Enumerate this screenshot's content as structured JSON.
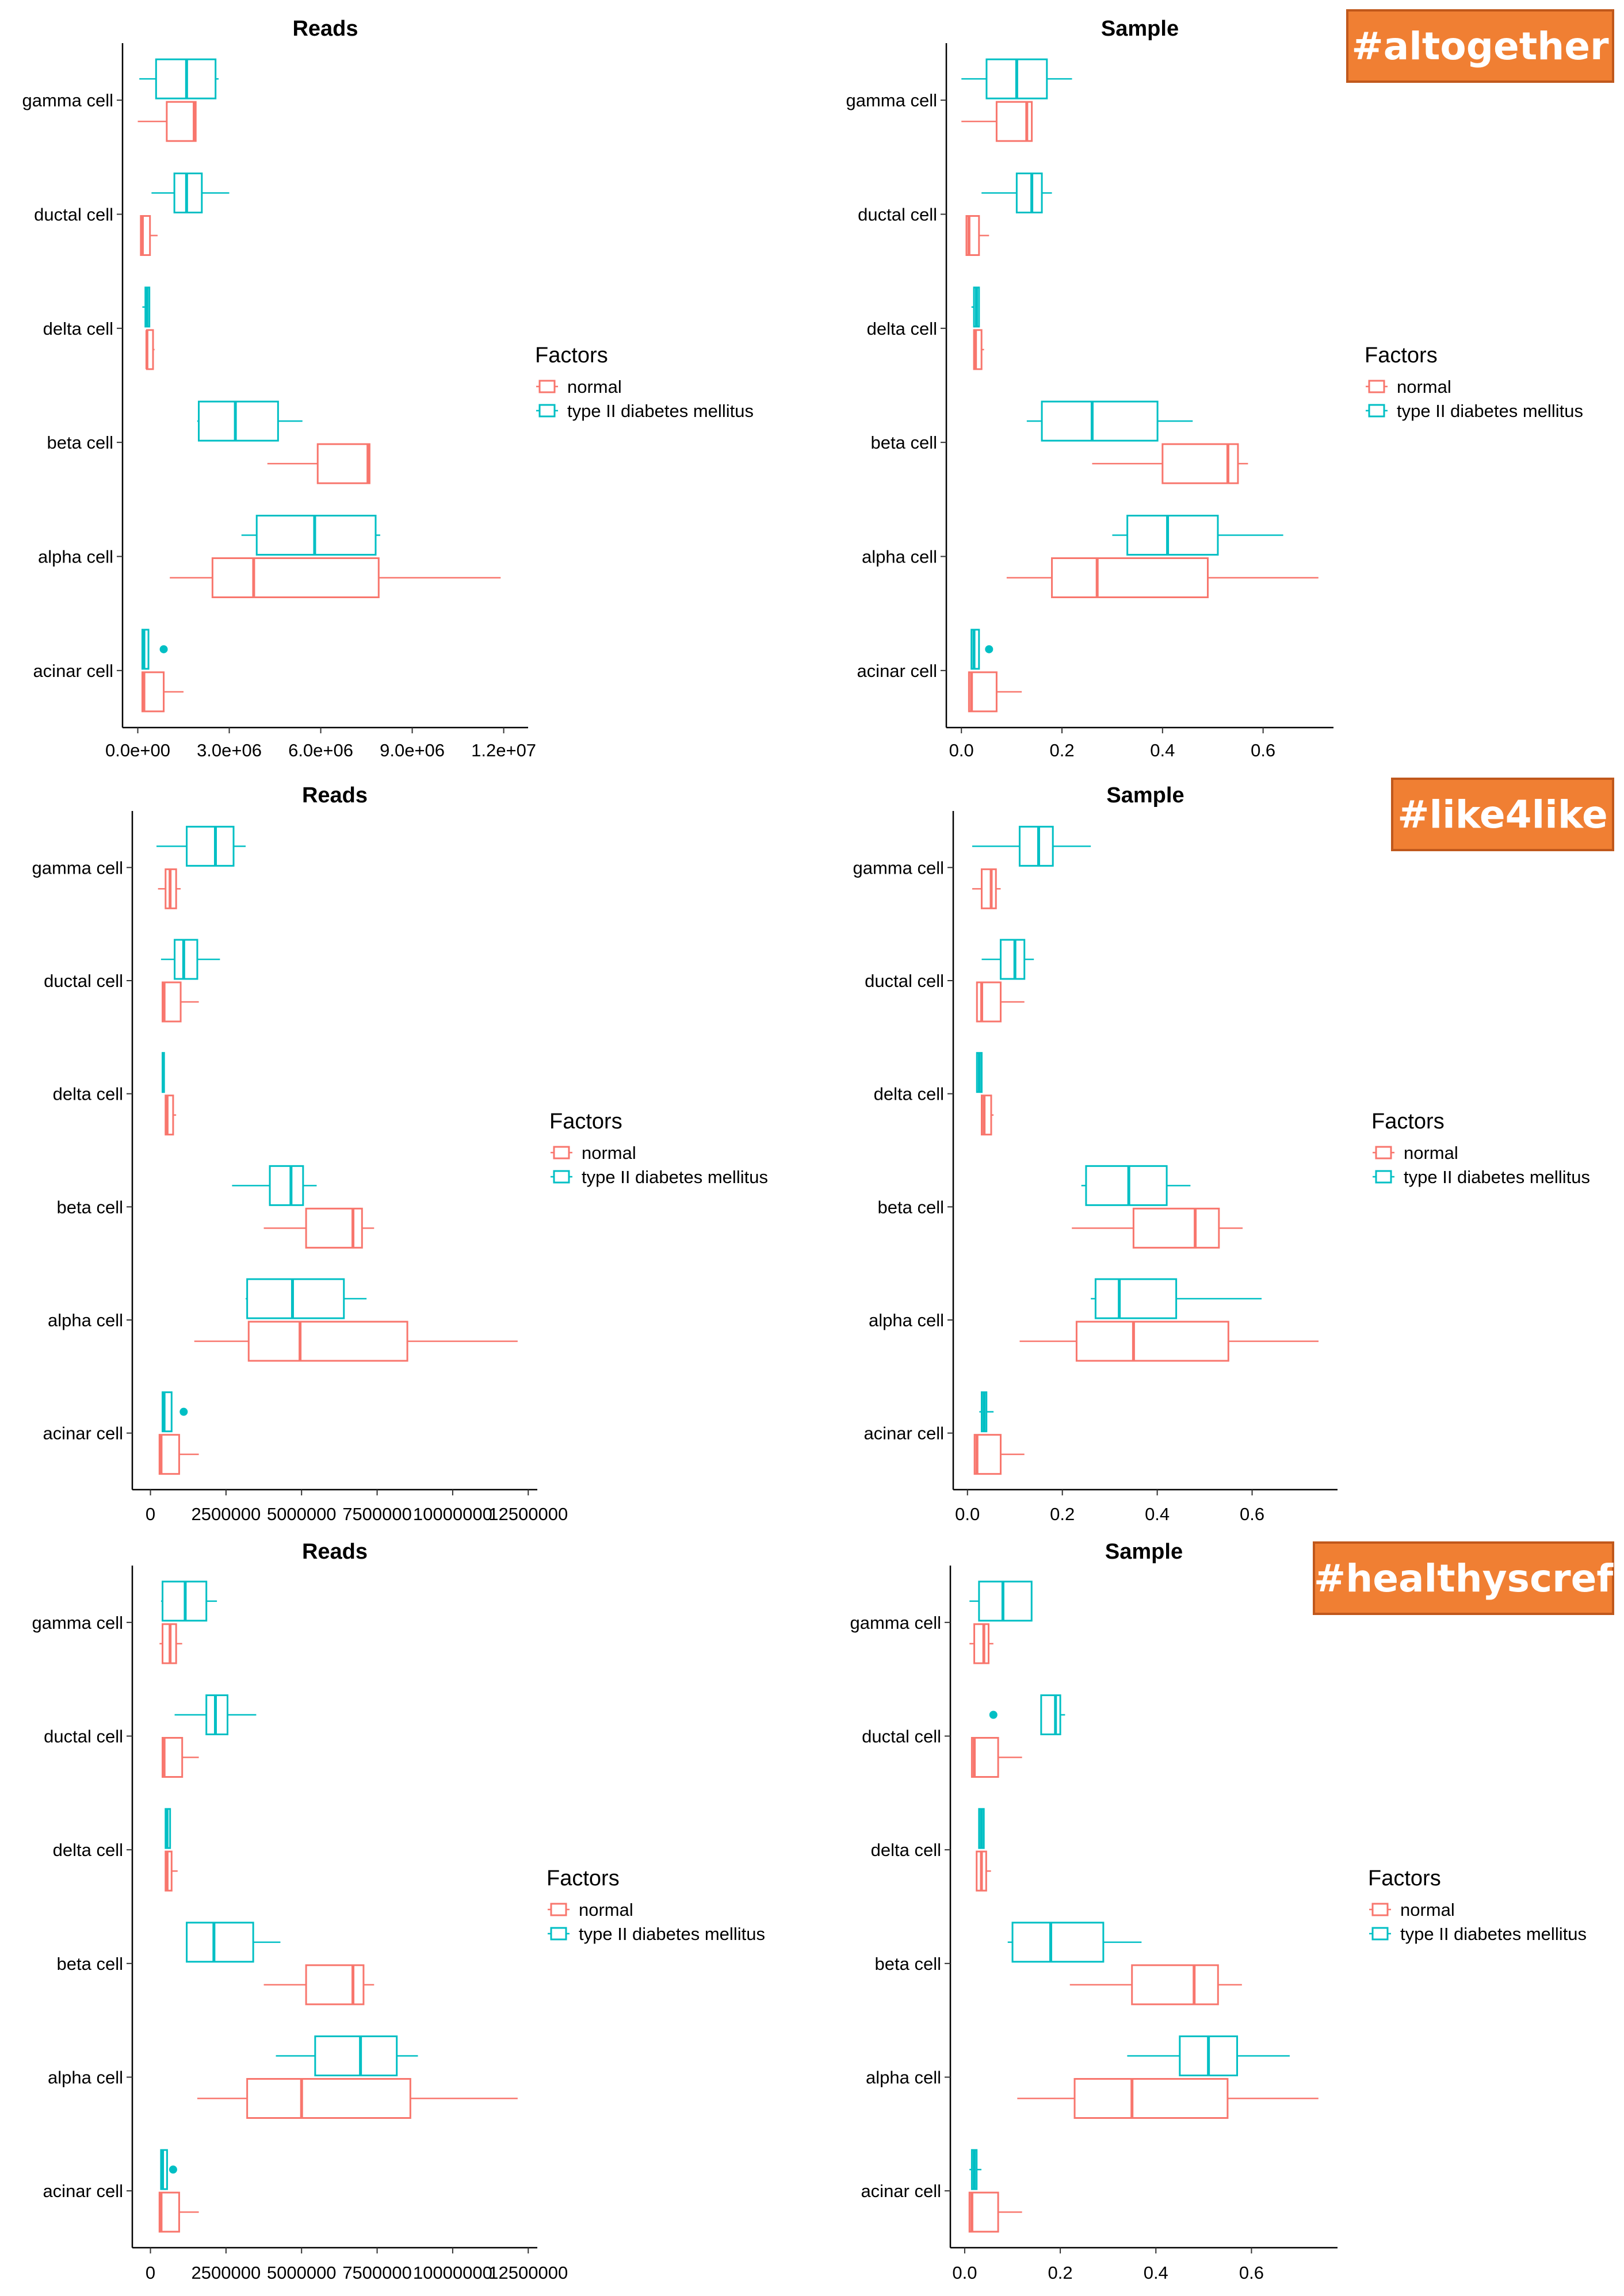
{
  "colors": {
    "normal": "#F8766D",
    "t2d": "#00BFC4",
    "axis": "#000000",
    "tag_bg": "#F07F33",
    "tag_border": "#C0581C"
  },
  "legend": {
    "title": "Factors",
    "entries": [
      "normal",
      "type II diabetes mellitus"
    ]
  },
  "categories": [
    "gamma cell",
    "ductal cell",
    "delta cell",
    "beta cell",
    "alpha cell",
    "acinar cell"
  ],
  "sections": [
    {
      "tag": "#altogether"
    },
    {
      "tag": "#like4like"
    },
    {
      "tag": "#healthyscref"
    }
  ],
  "chart_data": [
    {
      "type": "boxplot",
      "orientation": "horizontal",
      "title": "Reads",
      "section": 0,
      "xlim": [
        -500000,
        12800000
      ],
      "xticks": [
        0,
        3000000,
        6000000,
        9000000,
        12000000
      ],
      "xticklabels": [
        "0.0e+00",
        "3.0e+06",
        "6.0e+06",
        "9.0e+06",
        "1.2e+07"
      ],
      "series": [
        {
          "name": "normal",
          "boxes": {
            "gamma cell": {
              "min": 0,
              "q1": 950000,
              "median": 1850000,
              "q3": 1900000,
              "max": 1900000,
              "outliers": []
            },
            "ductal cell": {
              "min": 100000,
              "q1": 100000,
              "median": 150000,
              "q3": 400000,
              "max": 650000,
              "outliers": []
            },
            "delta cell": {
              "min": 300000,
              "q1": 300000,
              "median": 300000,
              "q3": 500000,
              "max": 550000,
              "outliers": []
            },
            "beta cell": {
              "min": 4250000,
              "q1": 5900000,
              "median": 7550000,
              "q3": 7600000,
              "max": 7600000,
              "outliers": []
            },
            "alpha cell": {
              "min": 1050000,
              "q1": 2450000,
              "median": 3800000,
              "q3": 7900000,
              "max": 11900000,
              "outliers": []
            },
            "acinar cell": {
              "min": 150000,
              "q1": 150000,
              "median": 200000,
              "q3": 850000,
              "max": 1500000,
              "outliers": []
            }
          }
        },
        {
          "name": "type II diabetes mellitus",
          "boxes": {
            "gamma cell": {
              "min": 50000,
              "q1": 600000,
              "median": 1600000,
              "q3": 2550000,
              "max": 2650000,
              "outliers": []
            },
            "ductal cell": {
              "min": 450000,
              "q1": 1200000,
              "median": 1600000,
              "q3": 2100000,
              "max": 3000000,
              "outliers": []
            },
            "delta cell": {
              "min": 150000,
              "q1": 250000,
              "median": 300000,
              "q3": 380000,
              "max": 380000,
              "outliers": []
            },
            "beta cell": {
              "min": 1950000,
              "q1": 2000000,
              "median": 3200000,
              "q3": 4600000,
              "max": 5400000,
              "outliers": []
            },
            "alpha cell": {
              "min": 3400000,
              "q1": 3900000,
              "median": 5800000,
              "q3": 7800000,
              "max": 7950000,
              "outliers": []
            },
            "acinar cell": {
              "min": 150000,
              "q1": 150000,
              "median": 200000,
              "q3": 350000,
              "max": 350000,
              "outliers": [
                850000
              ]
            }
          }
        }
      ]
    },
    {
      "type": "boxplot",
      "orientation": "horizontal",
      "title": "Sample",
      "section": 0,
      "xlim": [
        -0.03,
        0.74
      ],
      "xticks": [
        0,
        0.2,
        0.4,
        0.6
      ],
      "xticklabels": [
        "0.0",
        "0.2",
        "0.4",
        "0.6"
      ],
      "series": [
        {
          "name": "normal",
          "boxes": {
            "gamma cell": {
              "min": 0.0,
              "q1": 0.07,
              "median": 0.13,
              "q3": 0.14,
              "max": 0.14,
              "outliers": []
            },
            "ductal cell": {
              "min": 0.01,
              "q1": 0.01,
              "median": 0.015,
              "q3": 0.035,
              "max": 0.055,
              "outliers": []
            },
            "delta cell": {
              "min": 0.025,
              "q1": 0.025,
              "median": 0.028,
              "q3": 0.04,
              "max": 0.045,
              "outliers": []
            },
            "beta cell": {
              "min": 0.26,
              "q1": 0.4,
              "median": 0.53,
              "q3": 0.55,
              "max": 0.57,
              "outliers": []
            },
            "alpha cell": {
              "min": 0.09,
              "q1": 0.18,
              "median": 0.27,
              "q3": 0.49,
              "max": 0.71,
              "outliers": []
            },
            "acinar cell": {
              "min": 0.015,
              "q1": 0.015,
              "median": 0.02,
              "q3": 0.07,
              "max": 0.12,
              "outliers": []
            }
          }
        },
        {
          "name": "type II diabetes mellitus",
          "boxes": {
            "gamma cell": {
              "min": 0.0,
              "q1": 0.05,
              "median": 0.11,
              "q3": 0.17,
              "max": 0.22,
              "outliers": []
            },
            "ductal cell": {
              "min": 0.04,
              "q1": 0.11,
              "median": 0.14,
              "q3": 0.16,
              "max": 0.18,
              "outliers": []
            },
            "delta cell": {
              "min": 0.02,
              "q1": 0.025,
              "median": 0.03,
              "q3": 0.035,
              "max": 0.035,
              "outliers": []
            },
            "beta cell": {
              "min": 0.13,
              "q1": 0.16,
              "median": 0.26,
              "q3": 0.39,
              "max": 0.46,
              "outliers": []
            },
            "alpha cell": {
              "min": 0.3,
              "q1": 0.33,
              "median": 0.41,
              "q3": 0.51,
              "max": 0.64,
              "outliers": []
            },
            "acinar cell": {
              "min": 0.02,
              "q1": 0.02,
              "median": 0.025,
              "q3": 0.035,
              "max": 0.035,
              "outliers": [
                0.055
              ]
            }
          }
        }
      ]
    },
    {
      "type": "boxplot",
      "orientation": "horizontal",
      "title": "Reads",
      "section": 1,
      "xlim": [
        -600000,
        12800000
      ],
      "xticks": [
        0,
        2500000,
        5000000,
        7500000,
        10000000,
        12500000
      ],
      "xticklabels": [
        "0",
        "2500000",
        "5000000",
        "7500000",
        "10000000",
        "12500000"
      ],
      "series": [
        {
          "name": "normal",
          "boxes": {
            "gamma cell": {
              "min": 250000,
              "q1": 500000,
              "median": 650000,
              "q3": 850000,
              "max": 1000000,
              "outliers": []
            },
            "ductal cell": {
              "min": 400000,
              "q1": 400000,
              "median": 450000,
              "q3": 1000000,
              "max": 1600000,
              "outliers": []
            },
            "delta cell": {
              "min": 500000,
              "q1": 500000,
              "median": 550000,
              "q3": 750000,
              "max": 850000,
              "outliers": []
            },
            "beta cell": {
              "min": 3750000,
              "q1": 5150000,
              "median": 6700000,
              "q3": 7000000,
              "max": 7400000,
              "outliers": []
            },
            "alpha cell": {
              "min": 1450000,
              "q1": 3250000,
              "median": 4950000,
              "q3": 8500000,
              "max": 12150000,
              "outliers": []
            },
            "acinar cell": {
              "min": 300000,
              "q1": 300000,
              "median": 350000,
              "q3": 950000,
              "max": 1600000,
              "outliers": []
            }
          }
        },
        {
          "name": "type II diabetes mellitus",
          "boxes": {
            "gamma cell": {
              "min": 200000,
              "q1": 1200000,
              "median": 2150000,
              "q3": 2750000,
              "max": 3150000,
              "outliers": []
            },
            "ductal cell": {
              "min": 350000,
              "q1": 800000,
              "median": 1100000,
              "q3": 1550000,
              "max": 2300000,
              "outliers": []
            },
            "delta cell": {
              "min": 400000,
              "q1": 400000,
              "median": 420000,
              "q3": 450000,
              "max": 450000,
              "outliers": []
            },
            "beta cell": {
              "min": 2700000,
              "q1": 3950000,
              "median": 4650000,
              "q3": 5050000,
              "max": 5500000,
              "outliers": []
            },
            "alpha cell": {
              "min": 3150000,
              "q1": 3200000,
              "median": 4700000,
              "q3": 6400000,
              "max": 7150000,
              "outliers": []
            },
            "acinar cell": {
              "min": 400000,
              "q1": 400000,
              "median": 450000,
              "q3": 700000,
              "max": 700000,
              "outliers": [
                1100000
              ]
            }
          }
        }
      ]
    },
    {
      "type": "boxplot",
      "orientation": "horizontal",
      "title": "Sample",
      "section": 1,
      "xlim": [
        -0.03,
        0.78
      ],
      "xticks": [
        0,
        0.2,
        0.4,
        0.6
      ],
      "xticklabels": [
        "0.0",
        "0.2",
        "0.4",
        "0.6"
      ],
      "series": [
        {
          "name": "normal",
          "boxes": {
            "gamma cell": {
              "min": 0.01,
              "q1": 0.03,
              "median": 0.05,
              "q3": 0.06,
              "max": 0.07,
              "outliers": []
            },
            "ductal cell": {
              "min": 0.02,
              "q1": 0.02,
              "median": 0.03,
              "q3": 0.07,
              "max": 0.12,
              "outliers": []
            },
            "delta cell": {
              "min": 0.03,
              "q1": 0.03,
              "median": 0.035,
              "q3": 0.05,
              "max": 0.055,
              "outliers": []
            },
            "beta cell": {
              "min": 0.22,
              "q1": 0.35,
              "median": 0.48,
              "q3": 0.53,
              "max": 0.58,
              "outliers": []
            },
            "alpha cell": {
              "min": 0.11,
              "q1": 0.23,
              "median": 0.35,
              "q3": 0.55,
              "max": 0.74,
              "outliers": []
            },
            "acinar cell": {
              "min": 0.015,
              "q1": 0.015,
              "median": 0.02,
              "q3": 0.07,
              "max": 0.12,
              "outliers": []
            }
          }
        },
        {
          "name": "type II diabetes mellitus",
          "boxes": {
            "gamma cell": {
              "min": 0.01,
              "q1": 0.11,
              "median": 0.15,
              "q3": 0.18,
              "max": 0.26,
              "outliers": []
            },
            "ductal cell": {
              "min": 0.03,
              "q1": 0.07,
              "median": 0.1,
              "q3": 0.12,
              "max": 0.14,
              "outliers": []
            },
            "delta cell": {
              "min": 0.02,
              "q1": 0.02,
              "median": 0.025,
              "q3": 0.03,
              "max": 0.03,
              "outliers": []
            },
            "beta cell": {
              "min": 0.24,
              "q1": 0.25,
              "median": 0.34,
              "q3": 0.42,
              "max": 0.47,
              "outliers": []
            },
            "alpha cell": {
              "min": 0.26,
              "q1": 0.27,
              "median": 0.32,
              "q3": 0.44,
              "max": 0.62,
              "outliers": []
            },
            "acinar cell": {
              "min": 0.025,
              "q1": 0.03,
              "median": 0.035,
              "q3": 0.04,
              "max": 0.055,
              "outliers": []
            }
          }
        }
      ]
    },
    {
      "type": "boxplot",
      "orientation": "horizontal",
      "title": "Reads",
      "section": 2,
      "xlim": [
        -600000,
        12800000
      ],
      "xticks": [
        0,
        2500000,
        5000000,
        7500000,
        10000000,
        12500000
      ],
      "xticklabels": [
        "0",
        "2500000",
        "5000000",
        "7500000",
        "10000000",
        "12500000"
      ],
      "series": [
        {
          "name": "normal",
          "boxes": {
            "gamma cell": {
              "min": 300000,
              "q1": 400000,
              "median": 650000,
              "q3": 850000,
              "max": 1050000,
              "outliers": []
            },
            "ductal cell": {
              "min": 400000,
              "q1": 400000,
              "median": 450000,
              "q3": 1050000,
              "max": 1600000,
              "outliers": []
            },
            "delta cell": {
              "min": 500000,
              "q1": 500000,
              "median": 550000,
              "q3": 700000,
              "max": 900000,
              "outliers": []
            },
            "beta cell": {
              "min": 3750000,
              "q1": 5150000,
              "median": 6700000,
              "q3": 7050000,
              "max": 7400000,
              "outliers": []
            },
            "alpha cell": {
              "min": 1550000,
              "q1": 3200000,
              "median": 5000000,
              "q3": 8600000,
              "max": 12150000,
              "outliers": []
            },
            "acinar cell": {
              "min": 300000,
              "q1": 300000,
              "median": 350000,
              "q3": 950000,
              "max": 1600000,
              "outliers": []
            }
          }
        },
        {
          "name": "type II diabetes mellitus",
          "boxes": {
            "gamma cell": {
              "min": 350000,
              "q1": 400000,
              "median": 1150000,
              "q3": 1850000,
              "max": 2200000,
              "outliers": []
            },
            "ductal cell": {
              "min": 800000,
              "q1": 1850000,
              "median": 2150000,
              "q3": 2550000,
              "max": 3500000,
              "outliers": []
            },
            "delta cell": {
              "min": 500000,
              "q1": 500000,
              "median": 550000,
              "q3": 650000,
              "max": 650000,
              "outliers": []
            },
            "beta cell": {
              "min": 1200000,
              "q1": 1200000,
              "median": 2100000,
              "q3": 3400000,
              "max": 4300000,
              "outliers": []
            },
            "alpha cell": {
              "min": 4150000,
              "q1": 5450000,
              "median": 6950000,
              "q3": 8150000,
              "max": 8850000,
              "outliers": []
            },
            "acinar cell": {
              "min": 350000,
              "q1": 350000,
              "median": 400000,
              "q3": 550000,
              "max": 550000,
              "outliers": [
                750000
              ]
            }
          }
        }
      ]
    },
    {
      "type": "boxplot",
      "orientation": "horizontal",
      "title": "Sample",
      "section": 2,
      "xlim": [
        -0.03,
        0.78
      ],
      "xticks": [
        0,
        0.2,
        0.4,
        0.6
      ],
      "xticklabels": [
        "0.0",
        "0.2",
        "0.4",
        "0.6"
      ],
      "series": [
        {
          "name": "normal",
          "boxes": {
            "gamma cell": {
              "min": 0.01,
              "q1": 0.02,
              "median": 0.04,
              "q3": 0.05,
              "max": 0.06,
              "outliers": []
            },
            "ductal cell": {
              "min": 0.015,
              "q1": 0.015,
              "median": 0.02,
              "q3": 0.07,
              "max": 0.12,
              "outliers": []
            },
            "delta cell": {
              "min": 0.025,
              "q1": 0.025,
              "median": 0.035,
              "q3": 0.045,
              "max": 0.055,
              "outliers": []
            },
            "beta cell": {
              "min": 0.22,
              "q1": 0.35,
              "median": 0.48,
              "q3": 0.53,
              "max": 0.58,
              "outliers": []
            },
            "alpha cell": {
              "min": 0.11,
              "q1": 0.23,
              "median": 0.35,
              "q3": 0.55,
              "max": 0.74,
              "outliers": []
            },
            "acinar cell": {
              "min": 0.01,
              "q1": 0.01,
              "median": 0.015,
              "q3": 0.07,
              "max": 0.12,
              "outliers": []
            }
          }
        },
        {
          "name": "type II diabetes mellitus",
          "boxes": {
            "gamma cell": {
              "min": 0.01,
              "q1": 0.03,
              "median": 0.08,
              "q3": 0.14,
              "max": 0.14,
              "outliers": []
            },
            "ductal cell": {
              "min": 0.16,
              "q1": 0.16,
              "median": 0.19,
              "q3": 0.2,
              "max": 0.21,
              "outliers": [
                0.06
              ]
            },
            "delta cell": {
              "min": 0.03,
              "q1": 0.03,
              "median": 0.035,
              "q3": 0.04,
              "max": 0.04,
              "outliers": []
            },
            "beta cell": {
              "min": 0.09,
              "q1": 0.1,
              "median": 0.18,
              "q3": 0.29,
              "max": 0.37,
              "outliers": []
            },
            "alpha cell": {
              "min": 0.34,
              "q1": 0.45,
              "median": 0.51,
              "q3": 0.57,
              "max": 0.68,
              "outliers": []
            },
            "acinar cell": {
              "min": 0.01,
              "q1": 0.015,
              "median": 0.02,
              "q3": 0.025,
              "max": 0.035,
              "outliers": []
            }
          }
        }
      ]
    }
  ]
}
